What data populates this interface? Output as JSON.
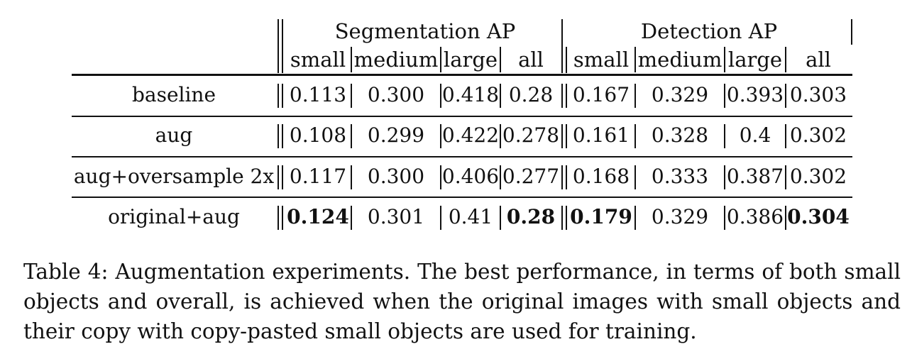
{
  "table": {
    "group_headers": [
      "Segmentation AP",
      "Detection AP"
    ],
    "sub_headers": [
      "small",
      "medium",
      "large",
      "all",
      "small",
      "medium",
      "large",
      "all"
    ],
    "rows": [
      {
        "label": "baseline",
        "values": [
          "0.113",
          "0.300",
          "0.418",
          "0.28",
          "0.167",
          "0.329",
          "0.393",
          "0.303"
        ],
        "bold": [
          false,
          false,
          false,
          false,
          false,
          false,
          false,
          false
        ]
      },
      {
        "label": "aug",
        "values": [
          "0.108",
          "0.299",
          "0.422",
          "0.278",
          "0.161",
          "0.328",
          "0.4",
          "0.302"
        ],
        "bold": [
          false,
          false,
          false,
          false,
          false,
          false,
          false,
          false
        ]
      },
      {
        "label": "aug+oversample 2x",
        "values": [
          "0.117",
          "0.300",
          "0.406",
          "0.277",
          "0.168",
          "0.333",
          "0.387",
          "0.302"
        ],
        "bold": [
          false,
          false,
          false,
          false,
          false,
          false,
          false,
          false
        ]
      },
      {
        "label": "original+aug",
        "values": [
          "0.124",
          "0.301",
          "0.41",
          "0.28",
          "0.179",
          "0.329",
          "0.386",
          "0.304"
        ],
        "bold": [
          true,
          false,
          false,
          true,
          true,
          false,
          false,
          true
        ]
      }
    ]
  },
  "caption": "Table 4: Augmentation experiments. The best performance, in terms of both small objects and overall, is achieved when the original images with small objects and their copy with copy-pasted small objects are used for training."
}
